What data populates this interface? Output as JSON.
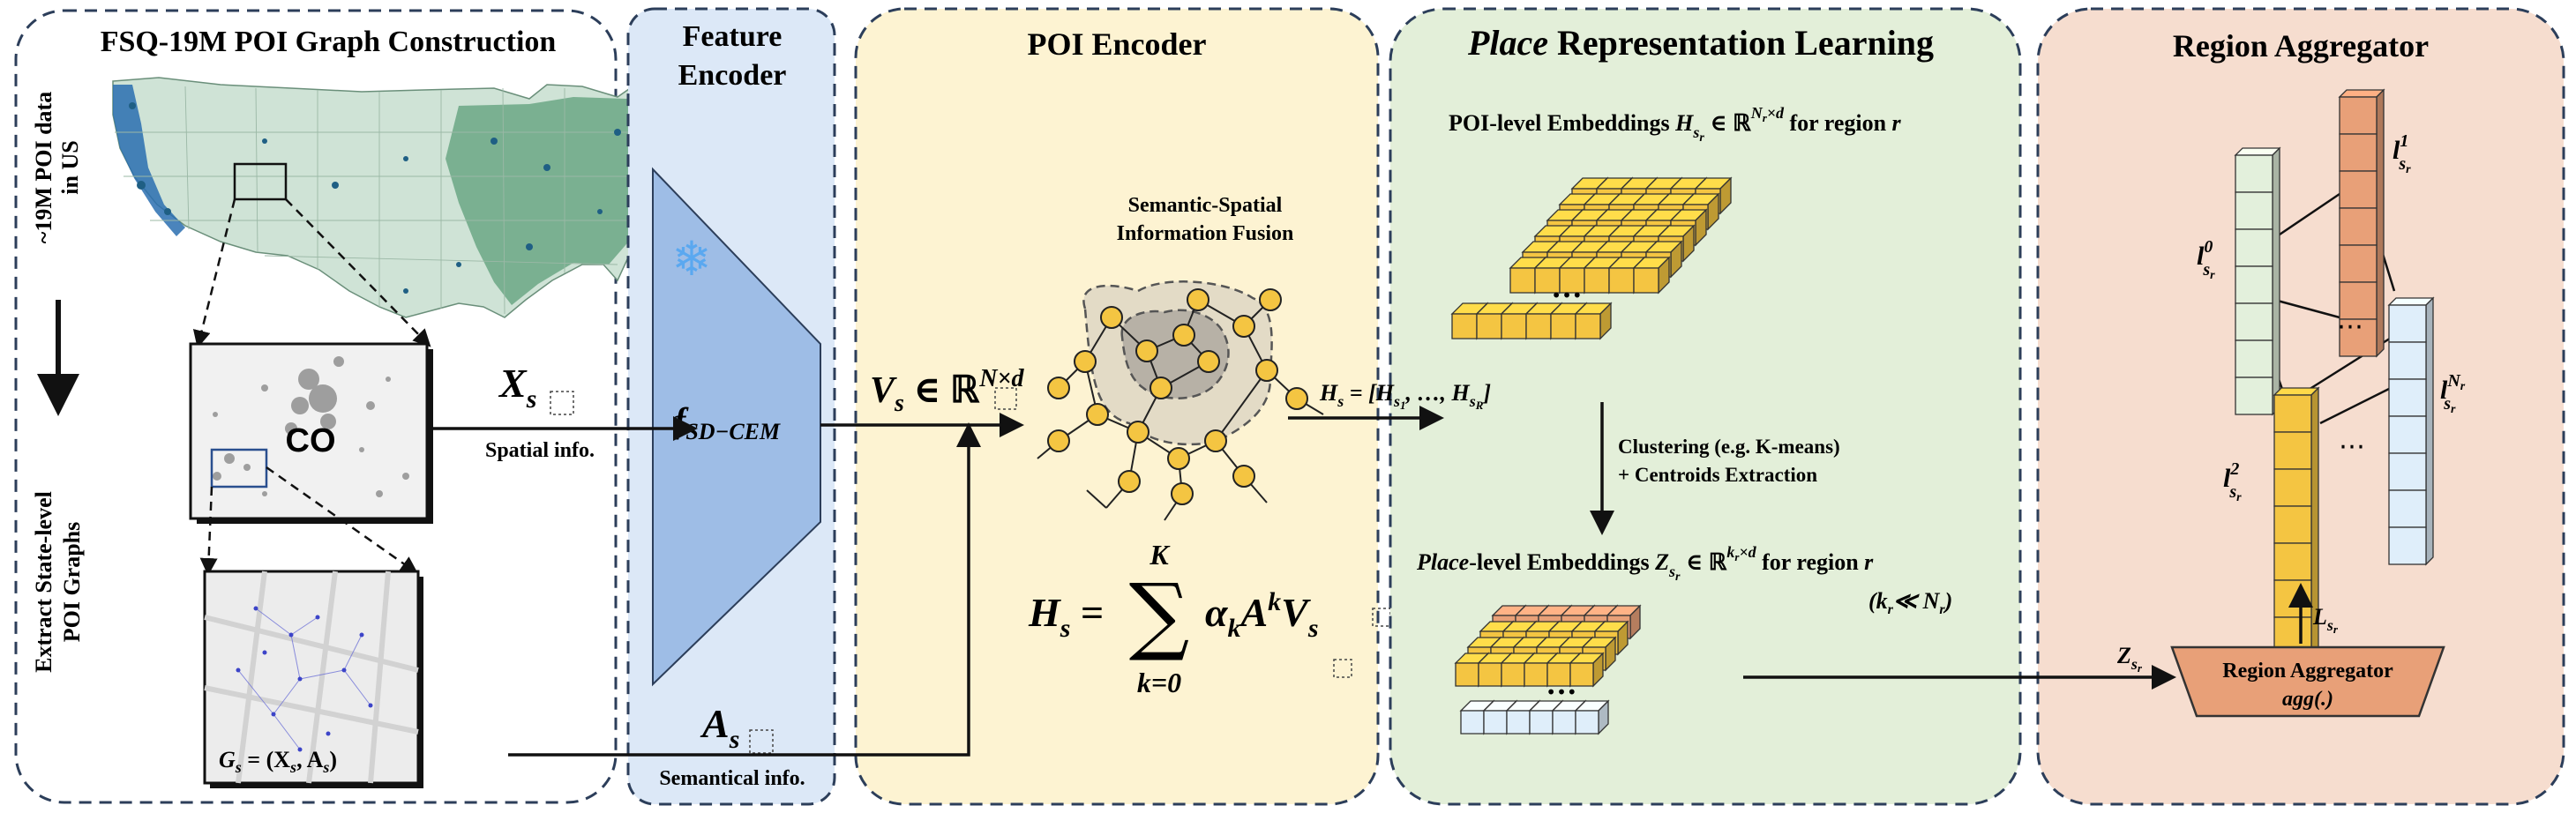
{
  "palette": {
    "panel1": "#ffffff",
    "panel2": "#dce8f7",
    "panel3": "#fdf3d2",
    "panel4": "#e3efd9",
    "panel5": "#f6ddcf",
    "panel_border": "#2c3e5a",
    "trapezoid": "#9ebde6",
    "cube_yellow": "#f4c542",
    "cube_orange": "#e8a078",
    "cube_blue": "#dfeefa",
    "cube_green": "#e3f0dc",
    "node_yellow": "#f4c542",
    "aggregator_box": "#e8a078",
    "map_green": "#5e9f7a",
    "map_blue": "#2a6fb0"
  },
  "panels": {
    "graph_construction": {
      "title": "FSQ-19M POI Graph Construction",
      "vertical_left_top": "~19M POI data in US",
      "vertical_left_top_line1": "~19M POI data",
      "vertical_left_top_line2": "in US",
      "vertical_left_bottom_line1": "Extract State-level",
      "vertical_left_bottom_line2": "POI Graphs",
      "state_label": "CO",
      "graph_label": "G_s = (X_s, A_s)",
      "graph_label_g": "G",
      "graph_label_rest": " = (X",
      "graph_label_rest2": ", A",
      "graph_label_close": ")"
    },
    "feature_encoder": {
      "title_line1": "Feature",
      "title_line2": "Encoder",
      "fn_f": "f",
      "fn_sub": "SD−CEM",
      "snowflake": "❄"
    },
    "poi_encoder": {
      "title": "POI Encoder",
      "fusion_line1": "Semantic-Spatial",
      "fusion_line2": "Information Fusion",
      "v_var": "V",
      "v_in": " ∈ ℝ",
      "v_sup": "N×d",
      "h_lhs": "H",
      "h_eq": " = ",
      "sum_sym": "∑",
      "sum_top": "K",
      "sum_bottom": "k=0",
      "h_rhs_alpha": "α",
      "h_rhs_k": "k",
      "h_rhs_A": "A",
      "h_rhs_V": "V"
    },
    "place_learning": {
      "title_italic": "Place",
      "title_rest": " Representation Learning",
      "poi_emb_prefix": "POI-level Embeddings ",
      "poi_emb_var": "H",
      "poi_emb_in": " ∈ ℝ",
      "poi_emb_sup": "N",
      "poi_emb_sup2": "×d",
      "poi_emb_suffix": " for region ",
      "region_var": "r",
      "hs_list_lhs": "H",
      "hs_list_rhs": " = [H",
      "hs_list_mid": ", …, H",
      "hs_list_close": "]",
      "cluster_line1": "Clustering (e.g. K-means)",
      "cluster_line2": "+ Centroids Extraction",
      "place_emb_italic": "Place",
      "place_emb_prefix": "-level Embeddings ",
      "place_emb_var": "Z",
      "place_emb_in": " ∈ ℝ",
      "place_emb_sup": "k",
      "place_emb_sup2": "×d",
      "place_emb_suffix": " for region ",
      "k_ll_n": "(k",
      "k_ll_n_mid": "≪ N",
      "k_ll_n_close": ")",
      "dots": "•••"
    },
    "region_aggregator": {
      "title": "Region Aggregator",
      "box_line1": "Region Aggregator",
      "box_line2": "agg(.)",
      "l_var": "l",
      "sup0": "0",
      "sup1": "1",
      "sup2": "2",
      "supN": "N",
      "dots": "⋯",
      "z_in": "Z",
      "l_out": "L"
    }
  },
  "flow_labels": {
    "xs": "X",
    "xs_caption": "Spatial info.",
    "as": "A",
    "as_caption": "Semantical info.",
    "sub_s": "s",
    "sub_r": "r",
    "sub_sr": "s",
    "sub_s1": "s",
    "sub_1": "1",
    "sub_R": "R"
  }
}
